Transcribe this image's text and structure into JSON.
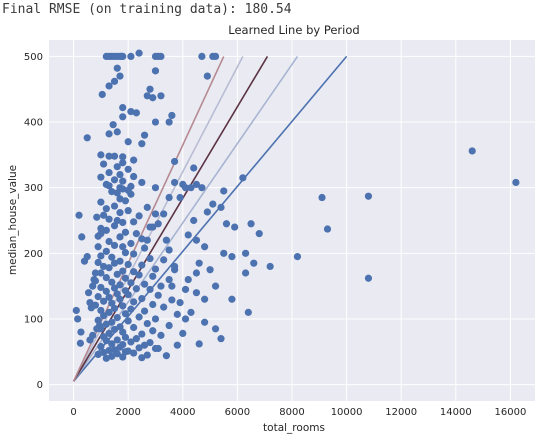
{
  "output": {
    "text": "Final RMSE (on training data): 180.54"
  },
  "chart_data": {
    "type": "scatter",
    "title": "Learned Line by Period",
    "xlabel": "total_rooms",
    "ylabel": "median_house_value",
    "xlim": [
      -900,
      16900
    ],
    "ylim": [
      -25,
      525
    ],
    "xticks": [
      0,
      2000,
      4000,
      6000,
      8000,
      10000,
      12000,
      14000,
      16000
    ],
    "yticks": [
      0,
      100,
      200,
      300,
      400,
      500
    ],
    "grid": true,
    "background": "#eaeaf2",
    "point_color": "#4c72b0",
    "points": [
      [
        1200,
        500
      ],
      [
        1300,
        500
      ],
      [
        1400,
        500
      ],
      [
        1500,
        500
      ],
      [
        1600,
        500
      ],
      [
        1700,
        500
      ],
      [
        1800,
        500
      ],
      [
        1750,
        500
      ],
      [
        2100,
        500
      ],
      [
        3000,
        500
      ],
      [
        3100,
        500
      ],
      [
        3200,
        500
      ],
      [
        4700,
        500
      ],
      [
        5100,
        500
      ],
      [
        5200,
        500
      ],
      [
        1600,
        482
      ],
      [
        3000,
        478
      ],
      [
        4900,
        470
      ],
      [
        1700,
        470
      ],
      [
        1500,
        462
      ],
      [
        1300,
        455
      ],
      [
        1050,
        442
      ],
      [
        2700,
        440
      ],
      [
        2900,
        437
      ],
      [
        1800,
        422
      ],
      [
        2100,
        416
      ],
      [
        2300,
        414
      ],
      [
        1800,
        408
      ],
      [
        3000,
        400
      ],
      [
        1450,
        396
      ],
      [
        1600,
        385
      ],
      [
        1300,
        382
      ],
      [
        500,
        376
      ],
      [
        2000,
        370
      ],
      [
        2500,
        367
      ],
      [
        1000,
        350
      ],
      [
        1300,
        348
      ],
      [
        1500,
        348
      ],
      [
        1800,
        347
      ],
      [
        2200,
        342
      ],
      [
        1800,
        338
      ],
      [
        1100,
        336
      ],
      [
        1600,
        332
      ],
      [
        2000,
        328
      ],
      [
        1300,
        323
      ],
      [
        1700,
        320
      ],
      [
        2200,
        317
      ],
      [
        1000,
        316
      ],
      [
        1500,
        312
      ],
      [
        1800,
        310
      ],
      [
        2500,
        308
      ],
      [
        1200,
        305
      ],
      [
        1300,
        303
      ],
      [
        2100,
        302
      ],
      [
        1700,
        300
      ],
      [
        1800,
        298
      ],
      [
        2000,
        296
      ],
      [
        1400,
        294
      ],
      [
        1600,
        292
      ],
      [
        2100,
        290
      ],
      [
        3700,
        308
      ],
      [
        4000,
        305
      ],
      [
        4300,
        300
      ],
      [
        3500,
        285
      ],
      [
        1700,
        283
      ],
      [
        1900,
        280
      ],
      [
        1000,
        278
      ],
      [
        1500,
        272
      ],
      [
        2700,
        270
      ],
      [
        1200,
        268
      ],
      [
        2000,
        265
      ],
      [
        1700,
        262
      ],
      [
        3000,
        260
      ],
      [
        1100,
        258
      ],
      [
        2400,
        257
      ],
      [
        850,
        255
      ],
      [
        1300,
        252
      ],
      [
        1600,
        250
      ],
      [
        2200,
        248
      ],
      [
        1800,
        247
      ],
      [
        3100,
        245
      ],
      [
        1500,
        242
      ],
      [
        2800,
        240
      ],
      [
        1000,
        238
      ],
      [
        1200,
        235
      ],
      [
        1900,
        232
      ],
      [
        2300,
        230
      ],
      [
        4200,
        228
      ],
      [
        900,
        226
      ],
      [
        1700,
        225
      ],
      [
        2500,
        222
      ],
      [
        3400,
        220
      ],
      [
        1300,
        218
      ],
      [
        2100,
        215
      ],
      [
        1500,
        212
      ],
      [
        1800,
        210
      ],
      [
        2600,
        208
      ],
      [
        3500,
        205
      ],
      [
        1200,
        203
      ],
      [
        1900,
        201
      ],
      [
        2200,
        199
      ],
      [
        1000,
        196
      ],
      [
        1400,
        194
      ],
      [
        2800,
        192
      ],
      [
        3300,
        190
      ],
      [
        1700,
        188
      ],
      [
        900,
        186
      ],
      [
        1500,
        185
      ],
      [
        2000,
        183
      ],
      [
        2500,
        182
      ],
      [
        1100,
        180
      ],
      [
        1300,
        178
      ],
      [
        3000,
        176
      ],
      [
        3700,
        175
      ],
      [
        1800,
        173
      ],
      [
        2200,
        172
      ],
      [
        1000,
        170
      ],
      [
        1600,
        168
      ],
      [
        2400,
        167
      ],
      [
        2900,
        165
      ],
      [
        1200,
        163
      ],
      [
        1900,
        162
      ],
      [
        3500,
        160
      ],
      [
        800,
        158
      ],
      [
        1400,
        156
      ],
      [
        2100,
        155
      ],
      [
        2600,
        153
      ],
      [
        1700,
        152
      ],
      [
        3200,
        150
      ],
      [
        1000,
        148
      ],
      [
        1500,
        147
      ],
      [
        2300,
        146
      ],
      [
        2800,
        145
      ],
      [
        1900,
        143
      ],
      [
        1200,
        142
      ],
      [
        4500,
        140
      ],
      [
        1600,
        138
      ],
      [
        2000,
        137
      ],
      [
        3100,
        136
      ],
      [
        900,
        134
      ],
      [
        1300,
        133
      ],
      [
        2500,
        131
      ],
      [
        1700,
        130
      ],
      [
        3600,
        129
      ],
      [
        1100,
        127
      ],
      [
        2200,
        126
      ],
      [
        1400,
        124
      ],
      [
        2900,
        122
      ],
      [
        800,
        121
      ],
      [
        1800,
        120
      ],
      [
        3300,
        118
      ],
      [
        1500,
        116
      ],
      [
        2100,
        115
      ],
      [
        1000,
        113
      ],
      [
        2600,
        112
      ],
      [
        1300,
        110
      ],
      [
        1900,
        108
      ],
      [
        3800,
        107
      ],
      [
        1100,
        105
      ],
      [
        2400,
        103
      ],
      [
        1600,
        102
      ],
      [
        3000,
        100
      ],
      [
        900,
        98
      ],
      [
        2000,
        97
      ],
      [
        1400,
        95
      ],
      [
        2700,
        93
      ],
      [
        1200,
        92
      ],
      [
        3500,
        90
      ],
      [
        1700,
        88
      ],
      [
        2200,
        87
      ],
      [
        1000,
        85
      ],
      [
        1500,
        84
      ],
      [
        2900,
        82
      ],
      [
        1800,
        80
      ],
      [
        1300,
        78
      ],
      [
        2500,
        77
      ],
      [
        3200,
        75
      ],
      [
        1100,
        73
      ],
      [
        1900,
        72
      ],
      [
        2300,
        70
      ],
      [
        1600,
        68
      ],
      [
        1200,
        67
      ],
      [
        2100,
        65
      ],
      [
        2800,
        64
      ],
      [
        1400,
        62
      ],
      [
        1800,
        61
      ],
      [
        2600,
        60
      ],
      [
        1000,
        58
      ],
      [
        1700,
        57
      ],
      [
        2400,
        56
      ],
      [
        3000,
        55
      ],
      [
        1500,
        53
      ],
      [
        1300,
        52
      ],
      [
        2000,
        51
      ],
      [
        1900,
        50
      ],
      [
        1100,
        49
      ],
      [
        2200,
        48
      ],
      [
        1600,
        47
      ],
      [
        900,
        46
      ],
      [
        2700,
        45
      ],
      [
        3400,
        44
      ],
      [
        1400,
        43
      ],
      [
        1800,
        42
      ],
      [
        2500,
        41
      ],
      [
        1200,
        40
      ],
      [
        3800,
        60
      ],
      [
        4100,
        100
      ],
      [
        4800,
        130
      ],
      [
        5200,
        150
      ],
      [
        5000,
        175
      ],
      [
        4600,
        185
      ],
      [
        5500,
        200
      ],
      [
        4800,
        210
      ],
      [
        5600,
        245
      ],
      [
        4400,
        250
      ],
      [
        4900,
        263
      ],
      [
        5100,
        275
      ],
      [
        3900,
        285
      ],
      [
        3000,
        300
      ],
      [
        2700,
        220
      ],
      [
        3300,
        260
      ],
      [
        2900,
        240
      ],
      [
        3700,
        180
      ],
      [
        4200,
        160
      ],
      [
        4500,
        170
      ],
      [
        3600,
        150
      ],
      [
        5800,
        130
      ],
      [
        3900,
        125
      ],
      [
        4300,
        110
      ],
      [
        4800,
        95
      ],
      [
        5200,
        85
      ],
      [
        4000,
        78
      ],
      [
        5400,
        70
      ],
      [
        4600,
        62
      ],
      [
        3100,
        55
      ],
      [
        5900,
        240
      ],
      [
        5400,
        270
      ],
      [
        6200,
        315
      ],
      [
        5500,
        295
      ],
      [
        4700,
        300
      ],
      [
        6600,
        185
      ],
      [
        7200,
        180
      ],
      [
        6400,
        110
      ],
      [
        6300,
        200
      ],
      [
        6800,
        230
      ],
      [
        6500,
        245
      ],
      [
        4500,
        220
      ],
      [
        5800,
        195
      ],
      [
        4100,
        145
      ],
      [
        6300,
        170
      ],
      [
        3700,
        340
      ],
      [
        4500,
        305
      ],
      [
        4400,
        330
      ],
      [
        4100,
        300
      ],
      [
        3600,
        410
      ],
      [
        3200,
        440
      ],
      [
        2400,
        505
      ],
      [
        2800,
        450
      ],
      [
        3500,
        400
      ],
      [
        2600,
        380
      ],
      [
        200,
        258
      ],
      [
        100,
        113
      ],
      [
        150,
        100
      ],
      [
        270,
        80
      ],
      [
        250,
        63
      ],
      [
        300,
        225
      ],
      [
        400,
        188
      ],
      [
        500,
        195
      ],
      [
        550,
        140
      ],
      [
        600,
        125
      ],
      [
        650,
        117
      ],
      [
        700,
        150
      ],
      [
        750,
        160
      ],
      [
        800,
        170
      ],
      [
        850,
        85
      ],
      [
        950,
        90
      ],
      [
        700,
        75
      ],
      [
        600,
        68
      ],
      [
        900,
        210
      ],
      [
        1000,
        230
      ],
      [
        8200,
        195
      ],
      [
        9100,
        285
      ],
      [
        9300,
        237
      ],
      [
        10800,
        287
      ],
      [
        10800,
        162
      ],
      [
        14600,
        356
      ],
      [
        16200,
        308
      ]
    ],
    "lines": [
      {
        "color": "#4c72b0",
        "opacity": 1.0,
        "x": [
          0,
          10000
        ],
        "y": [
          5,
          500
        ]
      },
      {
        "color": "#a7b4d1",
        "opacity": 1.0,
        "x": [
          0,
          8200
        ],
        "y": [
          5,
          500
        ]
      },
      {
        "color": "#b8bdd3",
        "opacity": 1.0,
        "x": [
          0,
          6200
        ],
        "y": [
          5,
          500
        ]
      },
      {
        "color": "#5b3343",
        "opacity": 1.0,
        "x": [
          0,
          7100
        ],
        "y": [
          5,
          500
        ]
      },
      {
        "color": "#b68a92",
        "opacity": 1.0,
        "x": [
          0,
          5500
        ],
        "y": [
          5,
          500
        ]
      }
    ]
  }
}
